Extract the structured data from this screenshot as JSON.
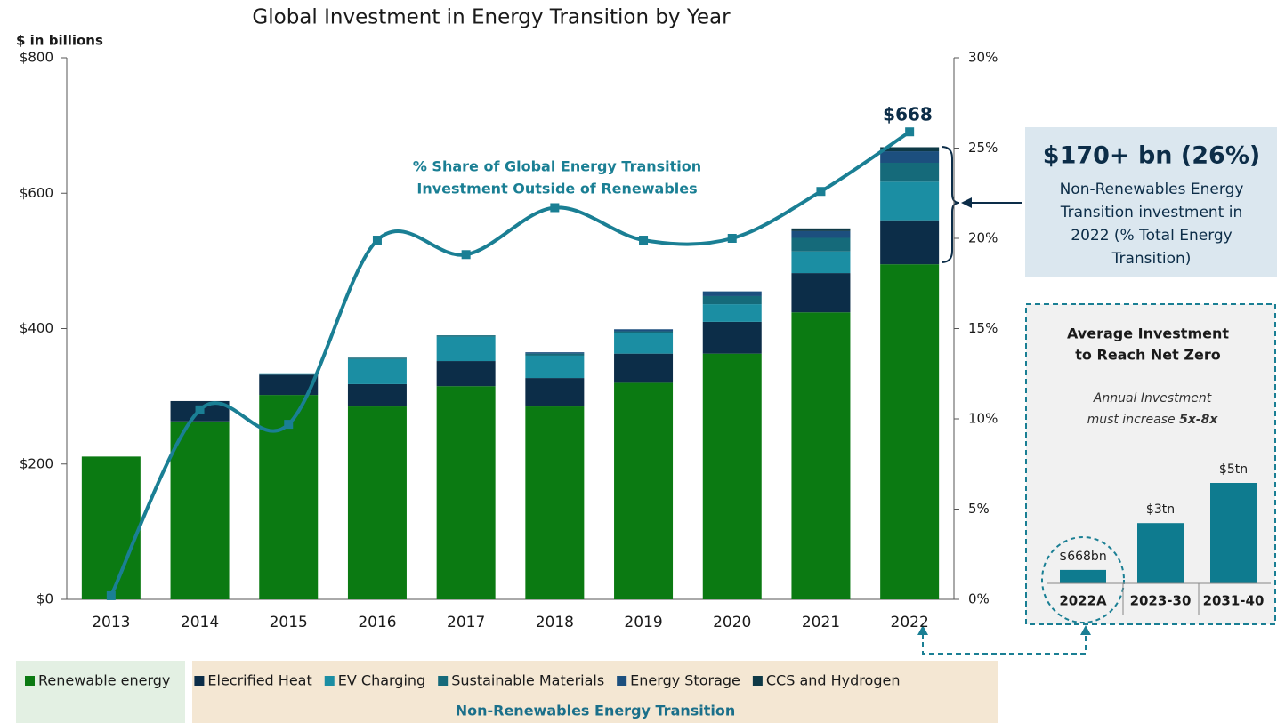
{
  "chart_data": [
    {
      "type": "bar",
      "title": "Global Investment in Energy Transition by Year",
      "y_axis_label": "$ in billions",
      "categories": [
        "2013",
        "2014",
        "2015",
        "2016",
        "2017",
        "2018",
        "2019",
        "2020",
        "2021",
        "2022"
      ],
      "series": [
        {
          "name": "Renewable energy",
          "color": "#0b7a12",
          "values": [
            211,
            263,
            302,
            285,
            315,
            285,
            320,
            363,
            424,
            495
          ]
        },
        {
          "name": "Elecrified Heat",
          "color": "#0c2d48",
          "values": [
            0,
            30,
            30,
            33,
            37,
            42,
            43,
            47,
            58,
            65
          ]
        },
        {
          "name": "EV Charging",
          "color": "#1b8ea3",
          "values": [
            0,
            0,
            2,
            37,
            36,
            33,
            30,
            26,
            32,
            57
          ]
        },
        {
          "name": "Sustainable Materials",
          "color": "#156a7a",
          "values": [
            0,
            0,
            0,
            2,
            2,
            3,
            3,
            12,
            20,
            28
          ]
        },
        {
          "name": "Energy Storage",
          "color": "#1c4f7e",
          "values": [
            0,
            0,
            0,
            0,
            0,
            2,
            3,
            7,
            10,
            17
          ]
        },
        {
          "name": "CCS and Hydrogen",
          "color": "#0e3946",
          "values": [
            0,
            0,
            0,
            0,
            0,
            0,
            0,
            0,
            4,
            6
          ]
        },
        {
          "name": "% Share of Global Energy Transition Investment Outside of Renewables",
          "type": "line",
          "axis": "y2",
          "color": "#1a7f94",
          "values": [
            0.2,
            10.5,
            9.7,
            19.9,
            19.1,
            21.7,
            19.9,
            20,
            22.6,
            25.9
          ]
        }
      ],
      "ylim": [
        0,
        800
      ],
      "yticks": [
        {
          "value": 0,
          "label": "$0"
        },
        {
          "value": 200,
          "label": "$200"
        },
        {
          "value": 400,
          "label": "$400"
        },
        {
          "value": 600,
          "label": "$600"
        },
        {
          "value": 800,
          "label": "$800"
        }
      ],
      "y2lim": [
        0,
        30
      ],
      "y2ticks": [
        {
          "value": 0,
          "label": "0%"
        },
        {
          "value": 5,
          "label": "5%"
        },
        {
          "value": 10,
          "label": "10%"
        },
        {
          "value": 15,
          "label": "15%"
        },
        {
          "value": 20,
          "label": "20%"
        },
        {
          "value": 25,
          "label": "25%"
        },
        {
          "value": 30,
          "label": "30%"
        }
      ],
      "annotations": {
        "line_label": [
          "% Share of Global Energy Transition",
          "Investment Outside of Renewables"
        ],
        "total_2022": "$668",
        "callout_headline": "$170+ bn (26%)",
        "callout_text": [
          "Non-Renewables Energy",
          "Transition investment in",
          "2022 (% Total Energy",
          "Transition)"
        ],
        "legend_group": "Non-Renewables Energy Transition"
      }
    },
    {
      "type": "bar",
      "title": [
        "Average Investment",
        "to Reach Net Zero"
      ],
      "subtitle": [
        "Annual Investment",
        "must increase ",
        "5x-8x"
      ],
      "categories": [
        "2022A",
        "2023-30",
        "2031-40"
      ],
      "values": [
        0.668,
        3,
        5
      ],
      "value_labels": [
        "$668bn",
        "$3tn",
        "$5tn"
      ],
      "color": "#0e7b8f"
    }
  ]
}
